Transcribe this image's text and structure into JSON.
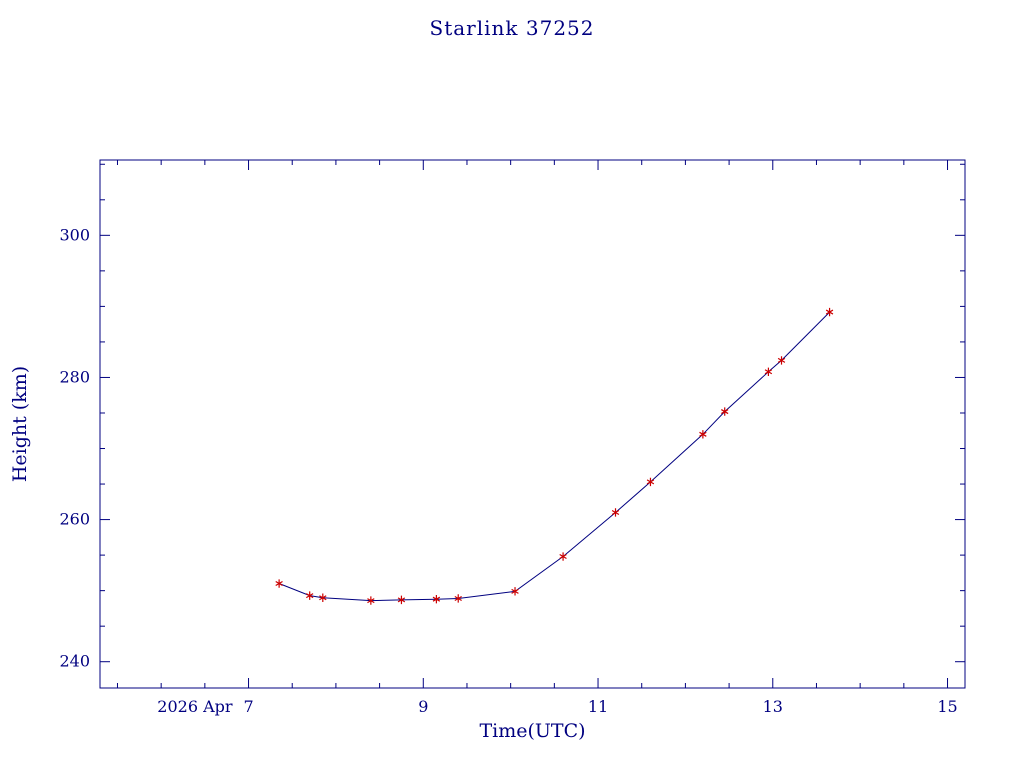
{
  "page": {
    "title": "Starlink 37252"
  },
  "chart_data": {
    "type": "line",
    "title": "Starlink 37252",
    "xlabel": "Time(UTC)",
    "ylabel": "Height (km)",
    "x_date_prefix": "2026 Apr",
    "xlim": [
      5.3,
      15.2
    ],
    "ylim": [
      236.3,
      310.6
    ],
    "x_major_ticks": [
      7,
      9,
      11,
      13,
      15
    ],
    "x_tick_labels": [
      "7",
      "9",
      "11",
      "13",
      "15"
    ],
    "x_minor_step": 0.5,
    "y_major_ticks": [
      240,
      260,
      280,
      300
    ],
    "y_tick_labels": [
      "240",
      "260",
      "280",
      "300"
    ],
    "y_minor_step": 5,
    "grid": false,
    "legend": "none",
    "colors": {
      "axis": "#000080",
      "text": "#000080",
      "line": "#000080",
      "marker": "#cc0000",
      "background": "#ffffff"
    },
    "series": [
      {
        "name": "height",
        "marker": "asterisk",
        "points": [
          [
            7.35,
            251.0
          ],
          [
            7.7,
            249.3
          ],
          [
            7.85,
            249.0
          ],
          [
            8.4,
            248.6
          ],
          [
            8.75,
            248.7
          ],
          [
            9.15,
            248.8
          ],
          [
            9.4,
            248.9
          ],
          [
            10.05,
            249.9
          ],
          [
            10.6,
            254.8
          ],
          [
            11.2,
            261.0
          ],
          [
            11.6,
            265.3
          ],
          [
            12.2,
            272.0
          ],
          [
            12.45,
            275.2
          ],
          [
            12.95,
            280.8
          ],
          [
            13.1,
            282.4
          ],
          [
            13.65,
            289.2
          ]
        ]
      }
    ]
  }
}
